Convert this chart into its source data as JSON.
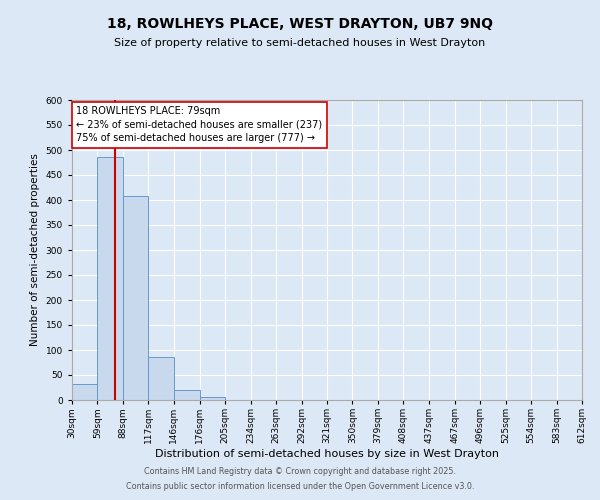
{
  "title": "18, ROWLHEYS PLACE, WEST DRAYTON, UB7 9NQ",
  "subtitle": "Size of property relative to semi-detached houses in West Drayton",
  "xlabel": "Distribution of semi-detached houses by size in West Drayton",
  "ylabel": "Number of semi-detached properties",
  "bar_color": "#c8d9ee",
  "bar_edge_color": "#6699cc",
  "background_color": "#dce8f5",
  "plot_bg_color": "#dce8f5",
  "grid_color": "#ffffff",
  "property_line_x": 79,
  "property_line_color": "#cc0000",
  "annotation_text": "18 ROWLHEYS PLACE: 79sqm\n← 23% of semi-detached houses are smaller (237)\n75% of semi-detached houses are larger (777) →",
  "annotation_box_color": "#ffffff",
  "annotation_box_edge": "#cc0000",
  "bin_edges": [
    30,
    59,
    88,
    117,
    146,
    176,
    205,
    234,
    263,
    292,
    321,
    350,
    379,
    408,
    437,
    467,
    496,
    525,
    554,
    583,
    612
  ],
  "bin_counts": [
    32,
    487,
    408,
    86,
    21,
    6,
    0,
    0,
    0,
    0,
    1,
    0,
    0,
    0,
    0,
    1,
    0,
    0,
    0,
    1
  ],
  "ylim": [
    0,
    600
  ],
  "yticks": [
    0,
    50,
    100,
    150,
    200,
    250,
    300,
    350,
    400,
    450,
    500,
    550,
    600
  ],
  "xtick_labels": [
    "30sqm",
    "59sqm",
    "88sqm",
    "117sqm",
    "146sqm",
    "176sqm",
    "205sqm",
    "234sqm",
    "263sqm",
    "292sqm",
    "321sqm",
    "350sqm",
    "379sqm",
    "408sqm",
    "437sqm",
    "467sqm",
    "496sqm",
    "525sqm",
    "554sqm",
    "583sqm",
    "612sqm"
  ],
  "footer_line1": "Contains HM Land Registry data © Crown copyright and database right 2025.",
  "footer_line2": "Contains public sector information licensed under the Open Government Licence v3.0."
}
